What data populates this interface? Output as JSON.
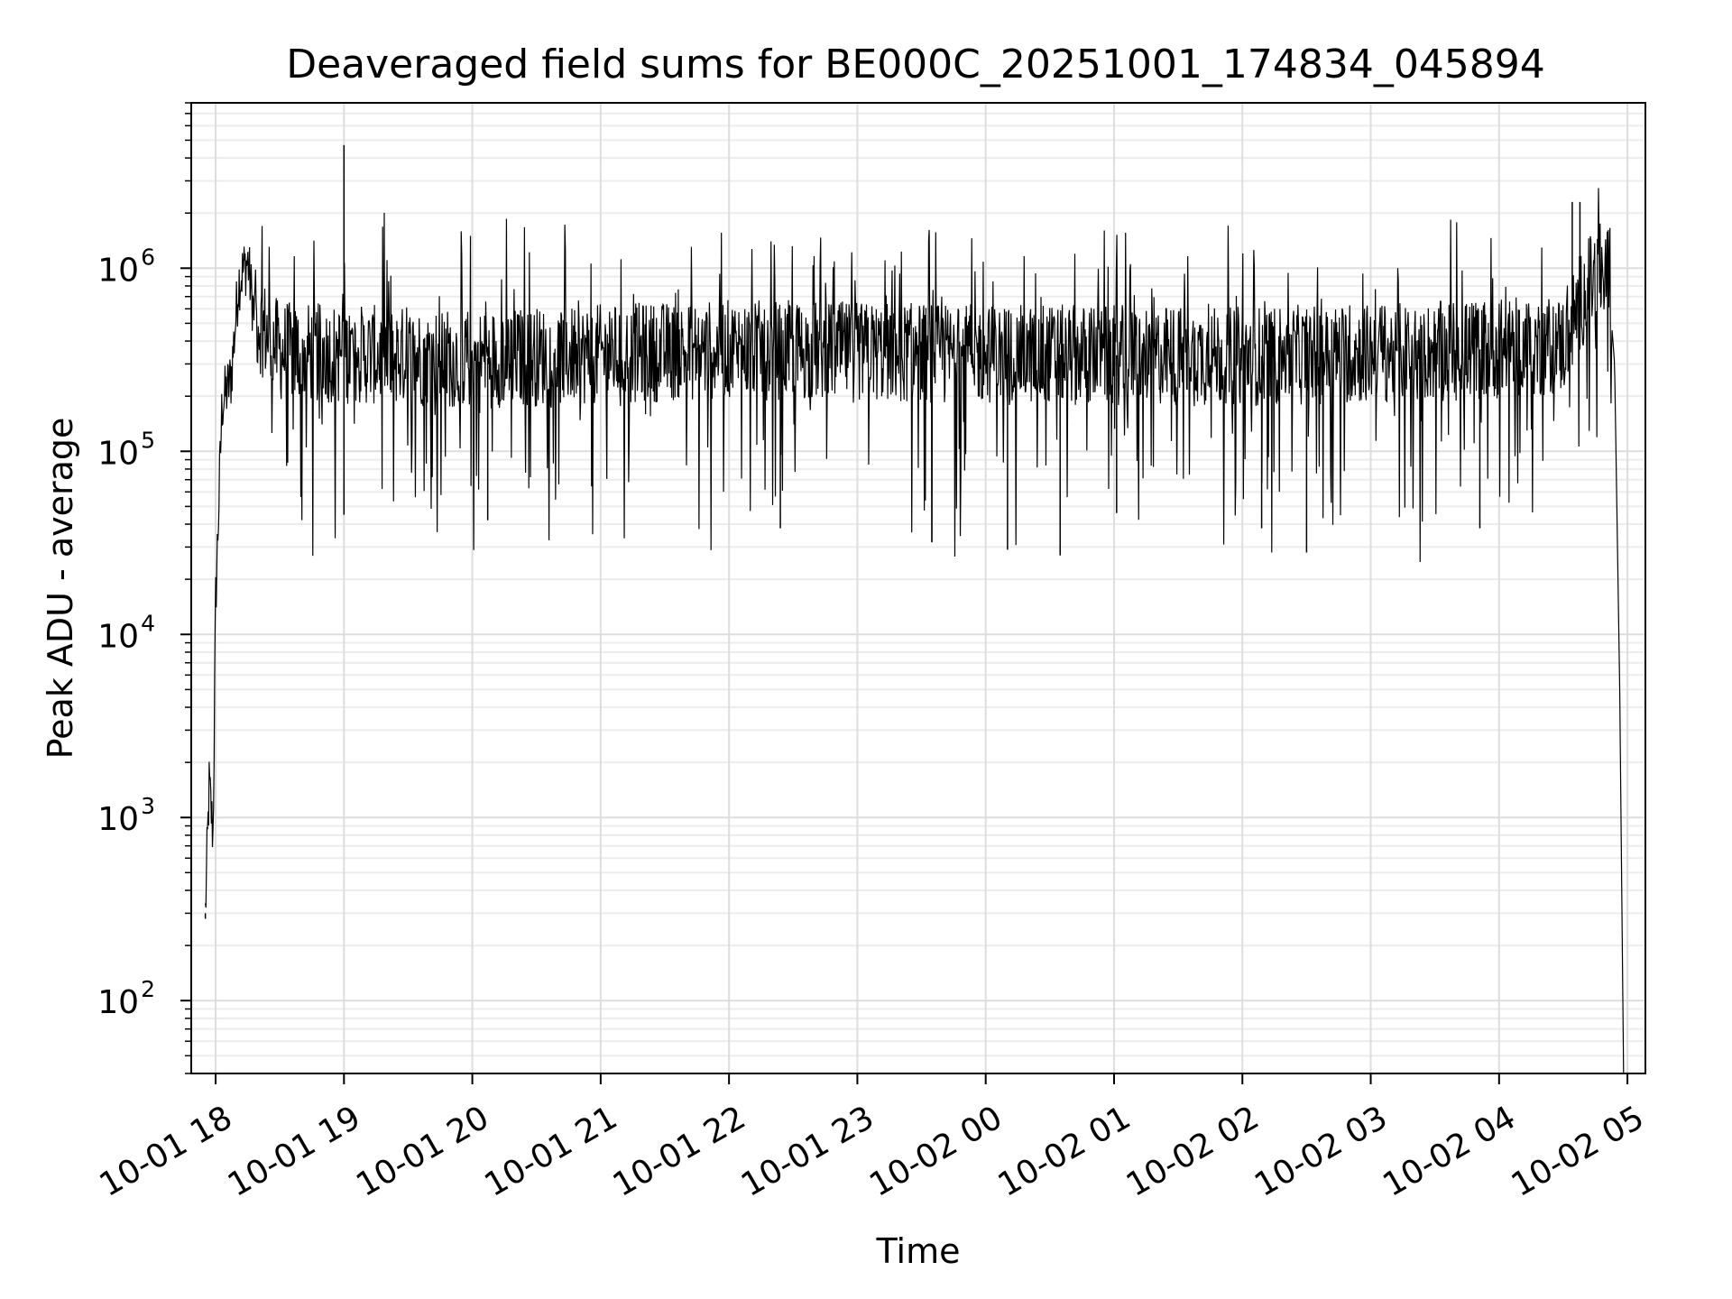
{
  "chart_data": {
    "type": "line",
    "title": "Deaveraged field sums for BE000C_20251001_174834_045894",
    "xlabel": "Time",
    "ylabel": "Peak ADU - average",
    "yscale": "log",
    "ylim": [
      40,
      8000000
    ],
    "xlim_hours": [
      17.81,
      29.14
    ],
    "grid": true,
    "x_ticks": [
      {
        "label": "10-01 18",
        "hour": 18
      },
      {
        "label": "10-01 19",
        "hour": 19
      },
      {
        "label": "10-01 20",
        "hour": 20
      },
      {
        "label": "10-01 21",
        "hour": 21
      },
      {
        "label": "10-01 22",
        "hour": 22
      },
      {
        "label": "10-01 23",
        "hour": 23
      },
      {
        "label": "10-02 00",
        "hour": 24
      },
      {
        "label": "10-02 01",
        "hour": 25
      },
      {
        "label": "10-02 02",
        "hour": 26
      },
      {
        "label": "10-02 03",
        "hour": 27
      },
      {
        "label": "10-02 04",
        "hour": 28
      },
      {
        "label": "10-02 05",
        "hour": 29
      }
    ],
    "y_ticks": [
      {
        "base": "10",
        "exp": "2",
        "value": 100
      },
      {
        "base": "10",
        "exp": "3",
        "value": 1000
      },
      {
        "base": "10",
        "exp": "4",
        "value": 10000
      },
      {
        "base": "10",
        "exp": "5",
        "value": 100000
      },
      {
        "base": "10",
        "exp": "6",
        "value": 1000000
      }
    ],
    "series": [
      {
        "name": "field sums",
        "color": "#000000",
        "baseline_points": [
          {
            "hour": 17.92,
            "value": 300
          },
          {
            "hour": 17.95,
            "value": 1500
          },
          {
            "hour": 17.98,
            "value": 800
          },
          {
            "hour": 18.0,
            "value": 15000
          },
          {
            "hour": 18.05,
            "value": 180000
          },
          {
            "hour": 18.12,
            "value": 250000
          },
          {
            "hour": 18.18,
            "value": 850000
          },
          {
            "hour": 18.25,
            "value": 1100000
          },
          {
            "hour": 18.3,
            "value": 550000
          },
          {
            "hour": 18.5,
            "value": 350000
          },
          {
            "hour": 20.0,
            "value": 320000
          },
          {
            "hour": 22.0,
            "value": 360000
          },
          {
            "hour": 24.0,
            "value": 340000
          },
          {
            "hour": 26.0,
            "value": 330000
          },
          {
            "hour": 27.5,
            "value": 350000
          },
          {
            "hour": 28.5,
            "value": 380000
          },
          {
            "hour": 28.65,
            "value": 700000
          },
          {
            "hour": 28.8,
            "value": 1000000
          },
          {
            "hour": 28.85,
            "value": 900000
          },
          {
            "hour": 28.9,
            "value": 300000
          },
          {
            "hour": 28.94,
            "value": 5000
          },
          {
            "hour": 28.97,
            "value": 40
          }
        ],
        "spikes": [
          {
            "hour": 19.0,
            "value": 4700000
          },
          {
            "hour": 28.57,
            "value": 2300000
          },
          {
            "hour": 28.63,
            "value": 2300000
          }
        ],
        "dips": [
          {
            "hour": 17.92,
            "value": 280
          },
          {
            "hour": 19.0,
            "value": 45000
          },
          {
            "hour": 20.12,
            "value": 42000
          },
          {
            "hour": 22.4,
            "value": 38000
          },
          {
            "hour": 23.58,
            "value": 32000
          },
          {
            "hour": 24.17,
            "value": 29000
          },
          {
            "hour": 24.58,
            "value": 27000
          },
          {
            "hour": 25.02,
            "value": 46000
          },
          {
            "hour": 26.15,
            "value": 38000
          },
          {
            "hour": 26.5,
            "value": 28000
          },
          {
            "hour": 27.85,
            "value": 38000
          }
        ]
      }
    ]
  }
}
